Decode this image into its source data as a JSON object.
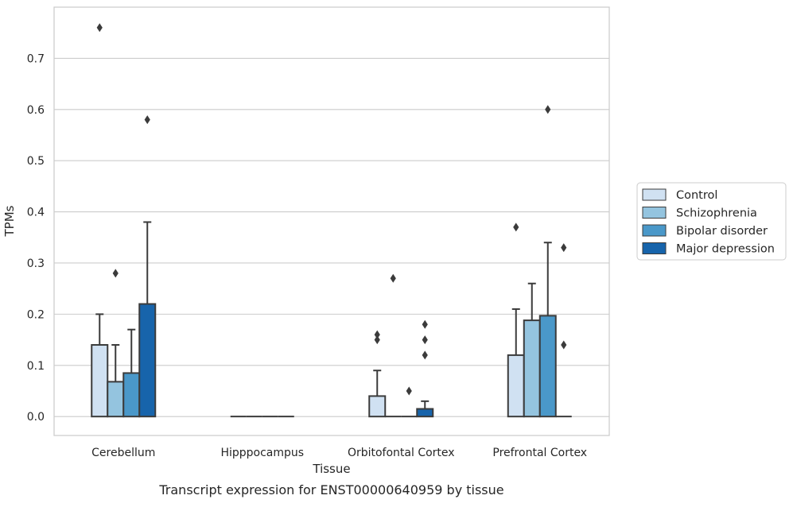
{
  "caption": "Transcript expression for ENST00000640959 by tissue",
  "chart_data": {
    "type": "bar",
    "xlabel": "Tissue",
    "ylabel": "TPMs",
    "ylim": [
      -0.037,
      0.8
    ],
    "yticks": [
      "0.0",
      "0.1",
      "0.2",
      "0.3",
      "0.4",
      "0.5",
      "0.6",
      "0.7"
    ],
    "grid": true,
    "legend_position": "right",
    "categories": [
      "Cerebellum",
      "Hipppocampus",
      "Orbitofontal Cortex",
      "Prefrontal Cortex"
    ],
    "series": [
      {
        "name": "Control",
        "color": "#d0e1f2",
        "values": [
          0.14,
          0.0,
          0.04,
          0.12
        ],
        "whisker_high": [
          0.2,
          0.0,
          0.09,
          0.21
        ],
        "outliers": [
          [
            0.76
          ],
          [],
          [
            0.15,
            0.16
          ],
          [
            0.37
          ]
        ]
      },
      {
        "name": "Schizophrenia",
        "color": "#94c4df",
        "values": [
          0.068,
          0.0,
          0.0,
          0.188
        ],
        "whisker_high": [
          0.14,
          0.0,
          0.0,
          0.26
        ],
        "outliers": [
          [
            0.28
          ],
          [],
          [
            0.27
          ],
          []
        ]
      },
      {
        "name": "Bipolar disorder",
        "color": "#4a98c9",
        "values": [
          0.085,
          0.0,
          0.0,
          0.197
        ],
        "whisker_high": [
          0.17,
          0.0,
          0.0,
          0.34
        ],
        "outliers": [
          [],
          [],
          [
            0.05
          ],
          [
            0.6
          ]
        ]
      },
      {
        "name": "Major depression",
        "color": "#1764ab",
        "values": [
          0.22,
          0.0,
          0.015,
          0.0
        ],
        "whisker_high": [
          0.38,
          0.0,
          0.03,
          0.0
        ],
        "outliers": [
          [
            0.58
          ],
          [],
          [
            0.12,
            0.15,
            0.18
          ],
          [
            0.14,
            0.33
          ]
        ]
      }
    ]
  }
}
